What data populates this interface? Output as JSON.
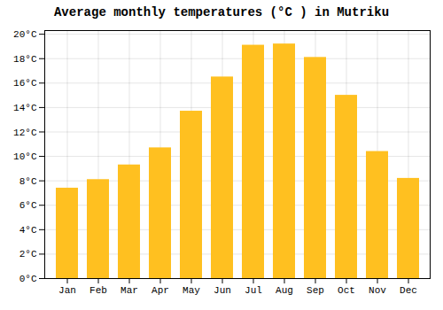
{
  "chart_data": {
    "type": "bar",
    "title": "Average monthly temperatures (°C ) in Mutriku",
    "categories": [
      "Jan",
      "Feb",
      "Mar",
      "Apr",
      "May",
      "Jun",
      "Jul",
      "Aug",
      "Sep",
      "Oct",
      "Nov",
      "Dec"
    ],
    "values": [
      7.4,
      8.1,
      9.3,
      10.7,
      13.7,
      16.5,
      19.1,
      19.2,
      18.1,
      15.0,
      10.4,
      8.2
    ],
    "color": "#FFC020",
    "ylim": [
      0,
      20.3
    ],
    "yticks": [
      {
        "value": 0,
        "label": "0°C"
      },
      {
        "value": 2,
        "label": "2°C"
      },
      {
        "value": 4,
        "label": "4°C"
      },
      {
        "value": 6,
        "label": "6°C"
      },
      {
        "value": 8,
        "label": "8°C"
      },
      {
        "value": 10,
        "label": "10°C"
      },
      {
        "value": 12,
        "label": "12°C"
      },
      {
        "value": 14,
        "label": "14°C"
      },
      {
        "value": 16,
        "label": "16°C"
      },
      {
        "value": 18,
        "label": "18°C"
      },
      {
        "value": 20,
        "label": "20°C"
      }
    ],
    "grid": true
  }
}
